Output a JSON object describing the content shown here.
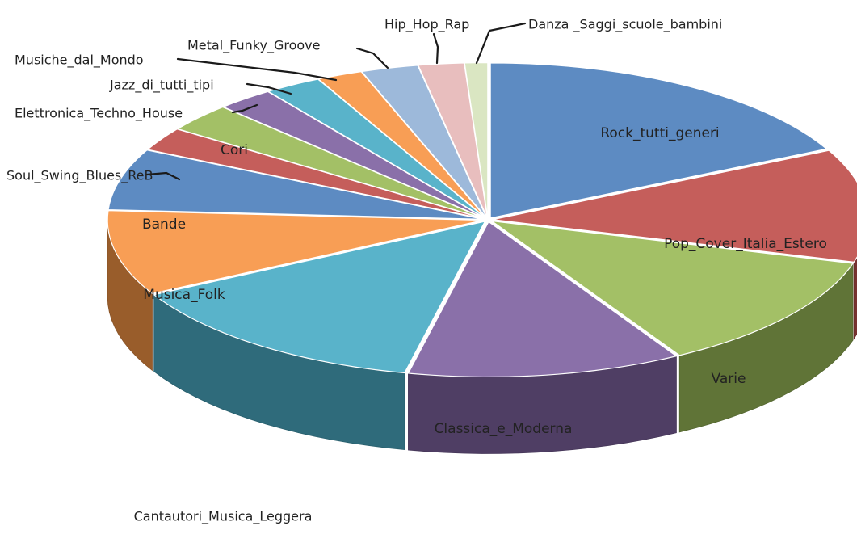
{
  "chart_data": {
    "type": "pie",
    "style": "3d-exploded-perspective",
    "title": "",
    "legend": "none",
    "slices": [
      {
        "label": "Rock_tutti_generi",
        "value": 18.0,
        "color": "#4f81bd",
        "label_inside": true
      },
      {
        "label": "Pop_Cover_Italia_Estero",
        "value": 12.0,
        "color": "#c0504d",
        "label_inside": true
      },
      {
        "label": "Varie",
        "value": 12.5,
        "color": "#9bbb59",
        "label_inside": true
      },
      {
        "label": "Classica_e_Moderna",
        "value": 12.0,
        "color": "#8064a2",
        "label_inside": true
      },
      {
        "label": "Cantautori_Musica_Leggera",
        "value": 14.0,
        "color": "#4bacc6",
        "label_inside": false
      },
      {
        "label": "Musica_Folk",
        "value": 9.0,
        "color": "#f79646",
        "label_inside": true
      },
      {
        "label": "Bande",
        "value": 6.5,
        "color": "#4f81bd",
        "label_inside": true
      },
      {
        "label": "Soul_Swing_Blues_ReB",
        "value": 2.5,
        "color": "#c0504d",
        "label_inside": false
      },
      {
        "label": "Cori",
        "value": 3.0,
        "color": "#9bbb59",
        "label_inside": true
      },
      {
        "label": "Elettronica_Techno_House",
        "value": 2.5,
        "color": "#8064a2",
        "label_inside": false
      },
      {
        "label": "Jazz_di_tutti_tipi",
        "value": 2.5,
        "color": "#4bacc6",
        "label_inside": false
      },
      {
        "label": "Musiche_dal_Mondo",
        "value": 2.0,
        "color": "#f79646",
        "label_inside": false
      },
      {
        "label": "Metal_Funky_Groove",
        "value": 2.5,
        "color": "#95b3d7",
        "label_inside": false
      },
      {
        "label": "Hip_Hop_Rap",
        "value": 2.0,
        "color": "#e6b9b8",
        "label_inside": false
      },
      {
        "label": "Danza _Saggi_scuole_bambini",
        "value": 1.0,
        "color": "#d7e4bd",
        "label_inside": false
      }
    ]
  }
}
